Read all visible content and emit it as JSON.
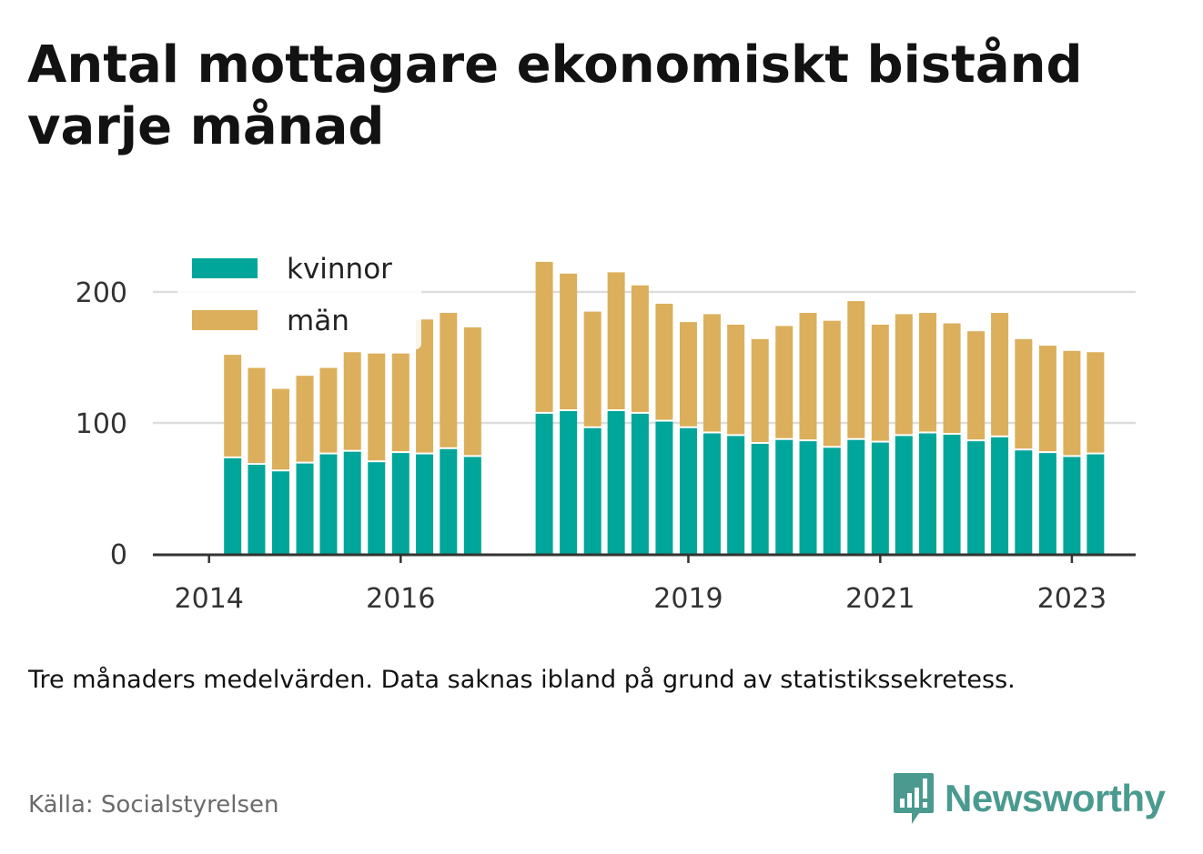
{
  "title": "Antal mottagare ekonomiskt bistånd varje månad",
  "note": "Tre månaders medelvärden. Data saknas ibland på grund av statistikssekretess.",
  "source": "Källa: Socialstyrelsen",
  "brand": {
    "name": "Newsworthy",
    "logo_icon": "bar-chart-speech-bubble-icon"
  },
  "colors": {
    "kvinnor": "#00a699",
    "man": "#dcaf5c",
    "axis": "#333333",
    "grid": "#dddddd"
  },
  "chart_data": {
    "type": "bar",
    "stacked": true,
    "title": "Antal mottagare ekonomiskt bistånd varje månad",
    "xlabel": "",
    "ylabel": "",
    "ylim": [
      0,
      240
    ],
    "yticks": [
      0,
      100,
      200
    ],
    "grid": true,
    "legend": "top-left",
    "x_axis_type": "date",
    "xlim": [
      "2013-06-01",
      "2023-09-01"
    ],
    "xticks": [
      {
        "date": "2014-01-01",
        "label": "2014"
      },
      {
        "date": "2016-01-01",
        "label": "2016"
      },
      {
        "date": "2019-01-01",
        "label": "2019"
      },
      {
        "date": "2021-01-01",
        "label": "2021"
      },
      {
        "date": "2023-01-01",
        "label": "2023"
      }
    ],
    "x": [
      "2014-04-01",
      "2014-07-01",
      "2014-10-01",
      "2015-01-01",
      "2015-04-01",
      "2015-07-01",
      "2015-10-01",
      "2016-01-01",
      "2016-04-01",
      "2016-07-01",
      "2016-10-01",
      "2017-07-01",
      "2017-10-01",
      "2018-01-01",
      "2018-04-01",
      "2018-07-01",
      "2018-10-01",
      "2019-01-01",
      "2019-04-01",
      "2019-07-01",
      "2019-10-01",
      "2020-01-01",
      "2020-04-01",
      "2020-07-01",
      "2020-10-01",
      "2021-01-01",
      "2021-04-01",
      "2021-07-01",
      "2021-10-01",
      "2022-01-01",
      "2022-04-01",
      "2022-07-01",
      "2022-10-01",
      "2023-01-01",
      "2023-04-01"
    ],
    "series": [
      {
        "name": "kvinnor",
        "values": [
          73,
          68,
          63,
          69,
          76,
          78,
          70,
          77,
          76,
          80,
          74,
          107,
          109,
          96,
          109,
          107,
          101,
          96,
          92,
          90,
          84,
          87,
          86,
          81,
          87,
          85,
          90,
          92,
          91,
          86,
          89,
          79,
          77,
          74,
          76
        ]
      },
      {
        "name": "män",
        "values": [
          79,
          74,
          63,
          67,
          66,
          76,
          83,
          76,
          103,
          104,
          99,
          116,
          105,
          89,
          106,
          98,
          90,
          81,
          91,
          85,
          80,
          87,
          98,
          97,
          106,
          90,
          93,
          92,
          85,
          84,
          95,
          85,
          82,
          81,
          78
        ]
      }
    ]
  }
}
